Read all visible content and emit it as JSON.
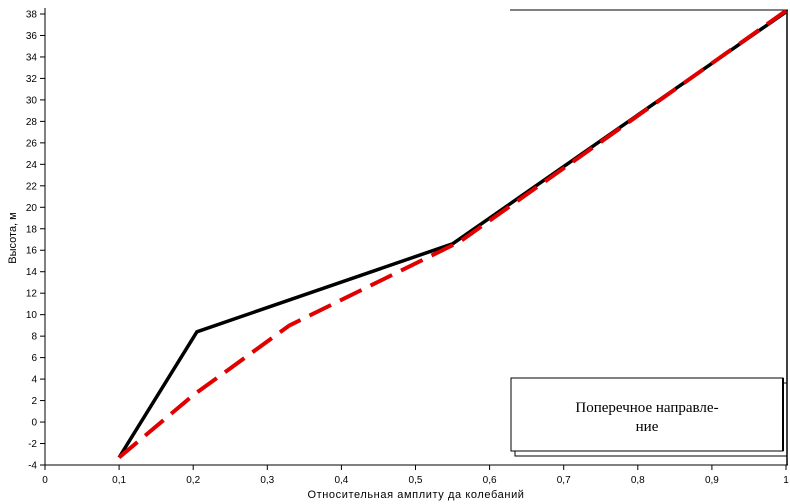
{
  "chart_data": {
    "type": "line",
    "xlabel": "Относительная амплиту да колебаний",
    "ylabel": "Высота, м",
    "xlim": [
      0,
      1.0
    ],
    "ylim": [
      -4,
      38
    ],
    "x_ticks": [
      "0",
      "0,1",
      "0,2",
      "0,3",
      "0,4",
      "0,5",
      "0,6",
      "0,7",
      "0,8",
      "0,9",
      "1"
    ],
    "x_tick_values": [
      0,
      0.1,
      0.2,
      0.3,
      0.4,
      0.5,
      0.6,
      0.7,
      0.8,
      0.9,
      1.0
    ],
    "y_ticks": [
      "-4",
      "-2",
      "0",
      "2",
      "4",
      "6",
      "8",
      "10",
      "12",
      "14",
      "16",
      "18",
      "20",
      "22",
      "24",
      "26",
      "28",
      "30",
      "32",
      "34",
      "36",
      "38"
    ],
    "y_tick_values": [
      -4,
      -2,
      0,
      2,
      4,
      6,
      8,
      10,
      12,
      14,
      16,
      18,
      20,
      22,
      24,
      26,
      28,
      30,
      32,
      34,
      36,
      38
    ],
    "grid": false,
    "series": [
      {
        "style": "solid",
        "color": "#000000",
        "x": [
          0.1,
          0.205,
          0.55,
          1.0
        ],
        "y": [
          -3.3,
          8.4,
          16.6,
          38.2
        ]
      },
      {
        "style": "dashed",
        "color": "#e00000",
        "x": [
          0.1,
          0.2,
          0.33,
          0.56,
          1.0
        ],
        "y": [
          -3.3,
          2.5,
          9.0,
          16.8,
          38.3
        ]
      }
    ],
    "legend": {
      "placement": "bottom-right",
      "text_line1": "Поперечное направле-",
      "text_line2": "ние"
    }
  }
}
